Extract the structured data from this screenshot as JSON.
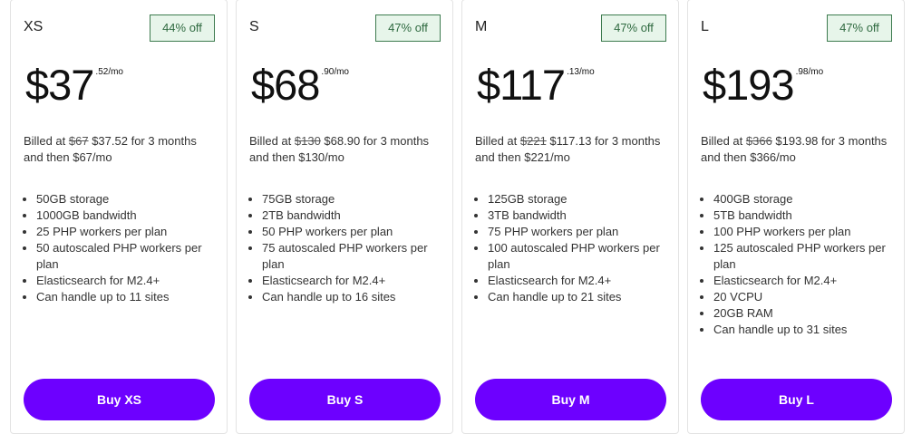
{
  "plans": [
    {
      "name": "XS",
      "discount": "44% off",
      "price": "$37",
      "cents": ".52/mo",
      "billed_prefix": "Billed at",
      "original": "$67",
      "billed_rest": "$37.52 for 3 months and then $67/mo",
      "features": [
        "50GB storage",
        "1000GB bandwidth",
        "25 PHP workers per plan",
        "50 autoscaled PHP workers per plan",
        "Elasticsearch for M2.4+",
        "Can handle up to 11 sites"
      ],
      "button": "Buy XS"
    },
    {
      "name": "S",
      "discount": "47% off",
      "price": "$68",
      "cents": ".90/mo",
      "billed_prefix": "Billed at",
      "original": "$130",
      "billed_rest": "$68.90 for 3 months and then $130/mo",
      "features": [
        "75GB storage",
        "2TB bandwidth",
        "50 PHP workers per plan",
        "75 autoscaled PHP workers per plan",
        "Elasticsearch for M2.4+",
        "Can handle up to 16 sites"
      ],
      "button": "Buy S"
    },
    {
      "name": "M",
      "discount": "47% off",
      "price": "$117",
      "cents": ".13/mo",
      "billed_prefix": "Billed at",
      "original": "$221",
      "billed_rest": "$117.13 for 3 months and then $221/mo",
      "features": [
        "125GB storage",
        "3TB bandwidth",
        "75 PHP workers per plan",
        "100 autoscaled PHP workers per plan",
        "Elasticsearch for M2.4+",
        "Can handle up to 21 sites"
      ],
      "button": "Buy M"
    },
    {
      "name": "L",
      "discount": "47% off",
      "price": "$193",
      "cents": ".98/mo",
      "billed_prefix": "Billed at",
      "original": "$366",
      "billed_rest": "$193.98 for 3 months and then $366/mo",
      "features": [
        "400GB storage",
        "5TB bandwidth",
        "100 PHP workers per plan",
        "125 autoscaled PHP workers per plan",
        "Elasticsearch for M2.4+",
        "20 VCPU",
        "20GB RAM",
        "Can handle up to 31 sites"
      ],
      "button": "Buy L"
    }
  ]
}
